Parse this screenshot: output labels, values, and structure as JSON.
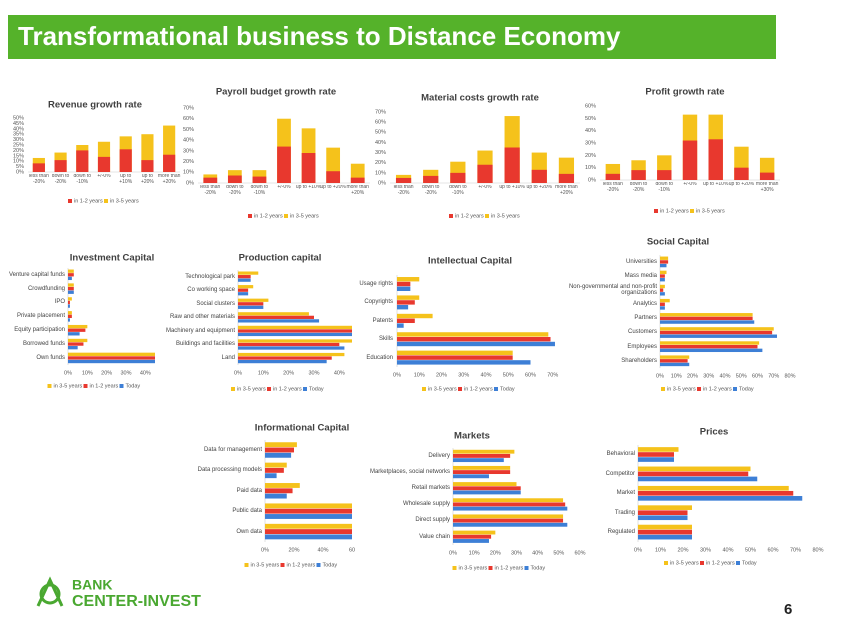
{
  "header": {
    "title": "Transformational business to Distance Economy"
  },
  "logo": {
    "line1": "BANK",
    "line2": "CENTER-INVEST"
  },
  "page_number": "6",
  "chart_data": [
    {
      "type": "bar",
      "title": "Revenue growth rate",
      "categories": [
        "less than -20%",
        "down to -20%",
        "down to -10%",
        "+/-0%",
        "up to +10%",
        "up to +20%",
        "more than +20%"
      ],
      "series": [
        {
          "name": "in 1-2 years",
          "color": "#e8382e",
          "values": [
            8,
            11,
            20,
            14,
            21,
            11,
            16
          ]
        },
        {
          "name": "in 3-5 years",
          "color": "#f5c21b",
          "values": [
            13,
            18,
            25,
            28,
            33,
            35,
            43
          ]
        }
      ],
      "ylim": [
        0,
        50
      ],
      "yticks": [
        {
          "value": 0,
          "label": "0%"
        },
        {
          "value": 5,
          "label": "5%"
        },
        {
          "value": 10,
          "label": "10%"
        },
        {
          "value": 15,
          "label": "15%"
        },
        {
          "value": 20,
          "label": "20%"
        },
        {
          "value": 25,
          "label": "25%"
        },
        {
          "value": 30,
          "label": "30%"
        },
        {
          "value": 35,
          "label": "35%"
        },
        {
          "value": 40,
          "label": "40%"
        },
        {
          "value": 45,
          "label": "45%"
        },
        {
          "value": 50,
          "label": "50%"
        }
      ],
      "grid": false
    },
    {
      "type": "bar",
      "title": "Payroll budget growth rate",
      "categories": [
        "less than -20%",
        "down to -20%",
        "down to -10%",
        "+/-0%",
        "up to +10%",
        "up to +20%",
        "more than +20%"
      ],
      "series": [
        {
          "name": "in 1-2 years",
          "color": "#e8382e",
          "values": [
            5,
            7,
            6,
            34,
            28,
            11,
            5
          ]
        },
        {
          "name": "in 3-5 years",
          "color": "#f5c21b",
          "values": [
            8,
            12,
            12,
            60,
            51,
            33,
            18
          ]
        }
      ],
      "ylim": [
        0,
        70
      ],
      "yticks": [
        {
          "value": 0,
          "label": "0%"
        },
        {
          "value": 10,
          "label": "10%"
        },
        {
          "value": 20,
          "label": "20%"
        },
        {
          "value": 30,
          "label": "30%"
        },
        {
          "value": 40,
          "label": "40%"
        },
        {
          "value": 50,
          "label": "50%"
        },
        {
          "value": 60,
          "label": "60%"
        },
        {
          "value": 70,
          "label": "70%"
        }
      ],
      "grid": false
    },
    {
      "type": "bar",
      "title": "Material costs growth rate",
      "categories": [
        "less than -20%",
        "down to -20%",
        "down to -10%",
        "+/-0%",
        "up to +10%",
        "up to +20%",
        "more than +20%"
      ],
      "series": [
        {
          "name": "in 1-2 years",
          "color": "#e8382e",
          "values": [
            5,
            7,
            10,
            18,
            35,
            13,
            9
          ]
        },
        {
          "name": "in 3-5 years",
          "color": "#f5c21b",
          "values": [
            8,
            13,
            21,
            32,
            66,
            30,
            25
          ]
        }
      ],
      "ylim": [
        0,
        70
      ],
      "yticks": [
        {
          "value": 0,
          "label": "0%"
        },
        {
          "value": 10,
          "label": "10%"
        },
        {
          "value": 20,
          "label": "20%"
        },
        {
          "value": 30,
          "label": "30%"
        },
        {
          "value": 40,
          "label": "40%"
        },
        {
          "value": 50,
          "label": "50%"
        },
        {
          "value": 60,
          "label": "60%"
        },
        {
          "value": 70,
          "label": "70%"
        }
      ],
      "grid": false
    },
    {
      "type": "bar",
      "title": "Profit growth rate",
      "categories": [
        "less than -20%",
        "down to -20%",
        "down to -10%",
        "+/-0%",
        "up to +10%",
        "up to +20%",
        "more than +30%"
      ],
      "series": [
        {
          "name": "in 1-2 years",
          "color": "#e8382e",
          "values": [
            5,
            8,
            8,
            32,
            33,
            10,
            6
          ]
        },
        {
          "name": "in 3-5 years",
          "color": "#f5c21b",
          "values": [
            13,
            16,
            20,
            53,
            53,
            27,
            18
          ]
        }
      ],
      "ylim": [
        0,
        60
      ],
      "yticks": [
        {
          "value": 0,
          "label": "0%"
        },
        {
          "value": 10,
          "label": "10%"
        },
        {
          "value": 20,
          "label": "20%"
        },
        {
          "value": 30,
          "label": "30%"
        },
        {
          "value": 40,
          "label": "40%"
        },
        {
          "value": 50,
          "label": "50%"
        },
        {
          "value": 60,
          "label": "60%"
        }
      ],
      "grid": false
    },
    {
      "type": "barh",
      "title": "Investment Capital",
      "categories": [
        "Venture capital funds",
        "Crowdfunding",
        "IPO",
        "Private placement",
        "Equity participation",
        "Borrowed funds",
        "Own funds"
      ],
      "series": [
        {
          "name": "in 3-5 years",
          "color": "#f5c21b",
          "values": [
            3,
            3,
            2,
            2,
            10,
            10,
            45
          ]
        },
        {
          "name": "in 1-2 years",
          "color": "#e8382e",
          "values": [
            3,
            3,
            1,
            2,
            9,
            8,
            45
          ]
        },
        {
          "name": "Today",
          "color": "#3d7fd6",
          "values": [
            2,
            3,
            1,
            1,
            6,
            5,
            45
          ]
        }
      ],
      "xlim": [
        0,
        45
      ],
      "xticks": [
        {
          "value": 0,
          "label": "0%"
        },
        {
          "value": 10,
          "label": "10%"
        },
        {
          "value": 20,
          "label": "20%"
        },
        {
          "value": 30,
          "label": "30%"
        },
        {
          "value": 40,
          "label": "40%"
        }
      ],
      "grid": false
    },
    {
      "type": "barh",
      "title": "Production capital",
      "categories": [
        "Technological park",
        "Co working space",
        "Social clusters",
        "Raw and other materials",
        "Machinery and equipment",
        "Buildings and facilities",
        "Land"
      ],
      "series": [
        {
          "name": "in 3-5 years",
          "color": "#f5c21b",
          "values": [
            8,
            6,
            12,
            28,
            45,
            45,
            42
          ]
        },
        {
          "name": "in 1-2 years",
          "color": "#e8382e",
          "values": [
            5,
            4,
            10,
            30,
            45,
            40,
            37
          ]
        },
        {
          "name": "Today",
          "color": "#3d7fd6",
          "values": [
            5,
            4,
            10,
            32,
            45,
            42,
            35
          ]
        }
      ],
      "xlim": [
        0,
        45
      ],
      "xticks": [
        {
          "value": 0,
          "label": "0%"
        },
        {
          "value": 10,
          "label": "10%"
        },
        {
          "value": 20,
          "label": "20%"
        },
        {
          "value": 30,
          "label": "30%"
        },
        {
          "value": 40,
          "label": "40%"
        }
      ],
      "grid": false
    },
    {
      "type": "barh",
      "title": "Intellectual Capital",
      "categories": [
        "Usage rights",
        "Copyrights",
        "Patents",
        "Skills",
        "Education"
      ],
      "series": [
        {
          "name": "in 3-5 years",
          "color": "#f5c21b",
          "values": [
            10,
            10,
            16,
            68,
            52
          ]
        },
        {
          "name": "in 1-2 years",
          "color": "#e8382e",
          "values": [
            6,
            8,
            8,
            69,
            52
          ]
        },
        {
          "name": "Today",
          "color": "#3d7fd6",
          "values": [
            6,
            5,
            3,
            71,
            60
          ]
        }
      ],
      "xlim": [
        0,
        80
      ],
      "xticks": [
        {
          "value": 0,
          "label": "0%"
        },
        {
          "value": 10,
          "label": "10%"
        },
        {
          "value": 20,
          "label": "20%"
        },
        {
          "value": 30,
          "label": "30%"
        },
        {
          "value": 40,
          "label": "40%"
        },
        {
          "value": 50,
          "label": "50%"
        },
        {
          "value": 60,
          "label": "60%"
        },
        {
          "value": 70,
          "label": "70%"
        }
      ],
      "grid": false
    },
    {
      "type": "barh",
      "title": "Social Capital",
      "categories": [
        "Universities",
        "Mass media",
        "Non-governmental and non-profit organizations",
        "Analytics",
        "Partners",
        "Customers",
        "Employees",
        "Shareholders"
      ],
      "series": [
        {
          "name": "in 3-5 years",
          "color": "#f5c21b",
          "values": [
            5,
            4,
            3,
            6,
            57,
            70,
            61,
            18
          ]
        },
        {
          "name": "in 1-2 years",
          "color": "#e8382e",
          "values": [
            5,
            3,
            2,
            3,
            57,
            69,
            60,
            17
          ]
        },
        {
          "name": "Today",
          "color": "#3d7fd6",
          "values": [
            4,
            3,
            3,
            3,
            58,
            72,
            63,
            18
          ]
        }
      ],
      "xlim": [
        0,
        80
      ],
      "xticks": [
        {
          "value": 0,
          "label": "0%"
        },
        {
          "value": 10,
          "label": "10%"
        },
        {
          "value": 20,
          "label": "20%"
        },
        {
          "value": 30,
          "label": "30%"
        },
        {
          "value": 40,
          "label": "40%"
        },
        {
          "value": 50,
          "label": "50%"
        },
        {
          "value": 60,
          "label": "60%"
        },
        {
          "value": 70,
          "label": "70%"
        },
        {
          "value": 80,
          "label": "80%"
        }
      ],
      "grid": false
    },
    {
      "type": "barh",
      "title": "Informational Capital",
      "categories": [
        "Data for management",
        "Data processing models",
        "Paid data",
        "Public data",
        "Own data"
      ],
      "series": [
        {
          "name": "in 3-5 years",
          "color": "#f5c21b",
          "values": [
            22,
            15,
            24,
            60,
            60
          ]
        },
        {
          "name": "in 1-2 years",
          "color": "#e8382e",
          "values": [
            20,
            13,
            19,
            60,
            60
          ]
        },
        {
          "name": "Today",
          "color": "#3d7fd6",
          "values": [
            18,
            8,
            15,
            60,
            60
          ]
        }
      ],
      "xlim": [
        0,
        60
      ],
      "xticks": [
        {
          "value": 0,
          "label": "0%"
        },
        {
          "value": 20,
          "label": "20%"
        },
        {
          "value": 40,
          "label": "40%"
        },
        {
          "value": 60,
          "label": "60"
        }
      ],
      "grid": false
    },
    {
      "type": "barh",
      "title": "Markets",
      "categories": [
        "Delivery",
        "Marketplaces, social networks",
        "Retail markets",
        "Wholesale supply",
        "Direct supply",
        "Value chain"
      ],
      "series": [
        {
          "name": "in 3-5 years",
          "color": "#f5c21b",
          "values": [
            29,
            27,
            30,
            52,
            52,
            20
          ]
        },
        {
          "name": "in 1-2 years",
          "color": "#e8382e",
          "values": [
            27,
            27,
            32,
            53,
            52,
            18
          ]
        },
        {
          "name": "Today",
          "color": "#3d7fd6",
          "values": [
            24,
            17,
            32,
            54,
            54,
            17
          ]
        }
      ],
      "xlim": [
        0,
        60
      ],
      "xticks": [
        {
          "value": 0,
          "label": "0%"
        },
        {
          "value": 10,
          "label": "10%"
        },
        {
          "value": 20,
          "label": "20%"
        },
        {
          "value": 30,
          "label": "30%"
        },
        {
          "value": 40,
          "label": "40%"
        },
        {
          "value": 50,
          "label": "50%"
        },
        {
          "value": 60,
          "label": "60%"
        }
      ],
      "grid": false
    },
    {
      "type": "barh",
      "title": "Prices",
      "categories": [
        "Behavioral",
        "Competitor",
        "Market",
        "Trading",
        "Regulated"
      ],
      "series": [
        {
          "name": "in 3-5 years",
          "color": "#f5c21b",
          "values": [
            18,
            50,
            67,
            24,
            24
          ]
        },
        {
          "name": "in 1-2 years",
          "color": "#e8382e",
          "values": [
            16,
            49,
            69,
            22,
            24
          ]
        },
        {
          "name": "Today",
          "color": "#3d7fd6",
          "values": [
            16,
            53,
            73,
            22,
            24
          ]
        }
      ],
      "xlim": [
        0,
        80
      ],
      "xticks": [
        {
          "value": 0,
          "label": "0%"
        },
        {
          "value": 10,
          "label": "10%"
        },
        {
          "value": 20,
          "label": "20%"
        },
        {
          "value": 30,
          "label": "30%"
        },
        {
          "value": 40,
          "label": "40%"
        },
        {
          "value": 50,
          "label": "50%"
        },
        {
          "value": 60,
          "label": "60%"
        },
        {
          "value": 70,
          "label": "70%"
        },
        {
          "value": 80,
          "label": "80%"
        }
      ],
      "grid": false
    }
  ]
}
